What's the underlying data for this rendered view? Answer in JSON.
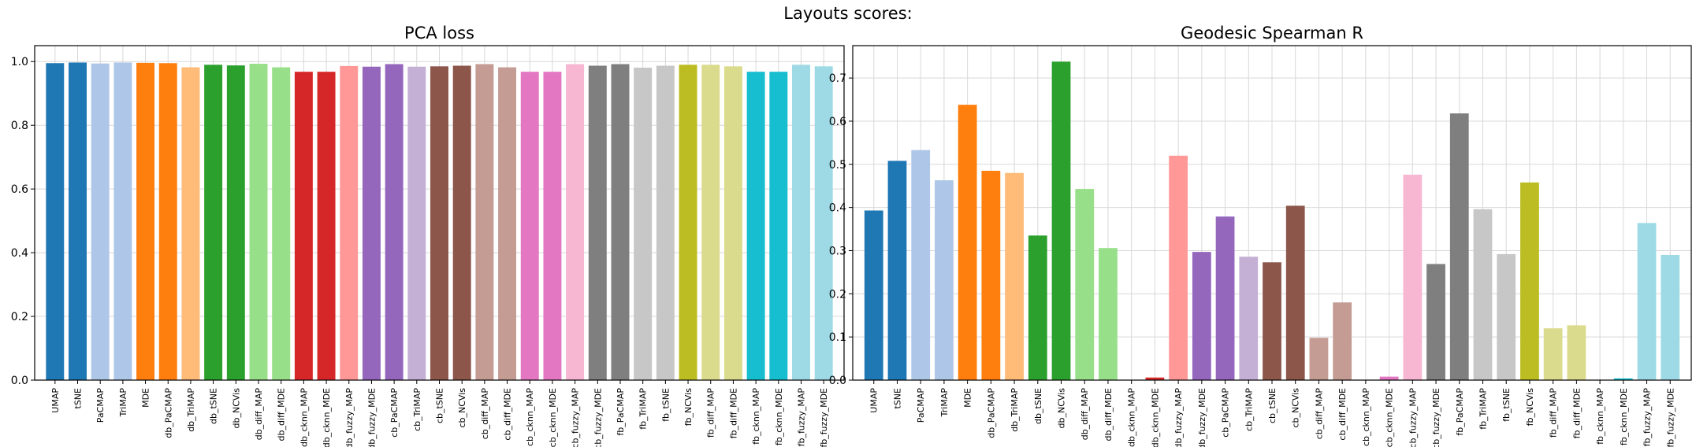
{
  "figure": {
    "suptitle": "Layouts scores:"
  },
  "colors": {
    "UMAP": "#1f77b4",
    "tSNE": "#1f77b4",
    "PaCMAP": "#aec7e8",
    "TriMAP": "#aec7e8",
    "MDE": "#ff7f0e",
    "db_PaCMAP": "#ff7f0e",
    "db_TriMAP": "#ffbb78",
    "db_tSNE": "#2ca02c",
    "db_NCVis": "#2ca02c",
    "db_diff_MAP": "#98df8a",
    "db_diff_MDE": "#98df8a",
    "db_cknn_MAP": "#d62728",
    "db_cknn_MDE": "#d62728",
    "db_fuzzy_MAP": "#ff9896",
    "db_fuzzy_MDE": "#9467bd",
    "cb_PaCMAP": "#9467bd",
    "cb_TriMAP": "#c5b0d5",
    "cb_tSNE": "#8c564b",
    "cb_NCVis": "#8c564b",
    "cb_diff_MAP": "#c49c94",
    "cb_diff_MDE": "#c49c94",
    "cb_cknn_MAP": "#e377c2",
    "cb_cknn_MDE": "#e377c2",
    "cb_fuzzy_MAP": "#f7b6d2",
    "cb_fuzzy_MDE": "#7f7f7f",
    "fb_PaCMAP": "#7f7f7f",
    "fb_TriMAP": "#c7c7c7",
    "fb_tSNE": "#c7c7c7",
    "fb_NCVis": "#bcbd22",
    "fb_diff_MAP": "#dbdb8d",
    "fb_diff_MDE": "#dbdb8d",
    "fb_cknn_MAP": "#17becf",
    "fb_cknn_MDE": "#17becf",
    "fb_fuzzy_MAP": "#9edae5",
    "fb_fuzzy_MDE": "#9edae5"
  },
  "chart_data": [
    {
      "type": "bar",
      "title": "PCA loss",
      "xlabel": "",
      "ylabel": "",
      "ylim": [
        0,
        1.05
      ],
      "yticks": [
        "0.0",
        "0.2",
        "0.4",
        "0.6",
        "0.8",
        "1.0"
      ],
      "grid": true,
      "categories": [
        "UMAP",
        "tSNE",
        "PaCMAP",
        "TriMAP",
        "MDE",
        "db_PaCMAP",
        "db_TriMAP",
        "db_tSNE",
        "db_NCVis",
        "db_diff_MAP",
        "db_diff_MDE",
        "db_cknn_MAP",
        "db_cknn_MDE",
        "db_fuzzy_MAP",
        "db_fuzzy_MDE",
        "cb_PaCMAP",
        "cb_TriMAP",
        "cb_tSNE",
        "cb_NCVis",
        "cb_diff_MAP",
        "cb_diff_MDE",
        "cb_cknn_MAP",
        "cb_cknn_MDE",
        "cb_fuzzy_MAP",
        "cb_fuzzy_MDE",
        "fb_PaCMAP",
        "fb_TriMAP",
        "fb_tSNE",
        "fb_NCVis",
        "fb_diff_MAP",
        "fb_diff_MDE",
        "fb_cknn_MAP",
        "fb_cknn_MDE",
        "fb_fuzzy_MAP",
        "fb_fuzzy_MDE"
      ],
      "values": [
        0.995,
        0.997,
        0.994,
        0.997,
        0.996,
        0.995,
        0.982,
        0.99,
        0.988,
        0.993,
        0.982,
        0.968,
        0.968,
        0.986,
        0.984,
        0.992,
        0.984,
        0.985,
        0.987,
        0.992,
        0.982,
        0.968,
        0.968,
        0.992,
        0.987,
        0.992,
        0.981,
        0.987,
        0.99,
        0.99,
        0.985,
        0.968,
        0.968,
        0.99,
        0.985
      ]
    },
    {
      "type": "bar",
      "title": "Geodesic Spearman R",
      "xlabel": "",
      "ylabel": "",
      "ylim": [
        0,
        0.775
      ],
      "yticks": [
        "0.0",
        "0.1",
        "0.2",
        "0.3",
        "0.4",
        "0.5",
        "0.6",
        "0.7"
      ],
      "grid": true,
      "categories": [
        "UMAP",
        "tSNE",
        "PaCMAP",
        "TriMAP",
        "MDE",
        "db_PaCMAP",
        "db_TriMAP",
        "db_tSNE",
        "db_NCVis",
        "db_diff_MAP",
        "db_diff_MDE",
        "db_cknn_MAP",
        "db_cknn_MDE",
        "db_fuzzy_MAP",
        "db_fuzzy_MDE",
        "cb_PaCMAP",
        "cb_TriMAP",
        "cb_tSNE",
        "cb_NCVis",
        "cb_diff_MAP",
        "cb_diff_MDE",
        "cb_cknn_MAP",
        "cb_cknn_MDE",
        "cb_fuzzy_MAP",
        "cb_fuzzy_MDE",
        "fb_PaCMAP",
        "fb_TriMAP",
        "fb_tSNE",
        "fb_NCVis",
        "fb_diff_MAP",
        "fb_diff_MDE",
        "fb_cknn_MAP",
        "fb_cknn_MDE",
        "fb_fuzzy_MAP",
        "fb_fuzzy_MDE"
      ],
      "values": [
        0.393,
        0.508,
        0.533,
        0.463,
        0.638,
        0.485,
        0.48,
        0.335,
        0.738,
        0.443,
        0.306,
        0.0,
        0.006,
        0.52,
        0.297,
        0.379,
        0.286,
        0.273,
        0.404,
        0.098,
        0.18,
        0.0,
        0.008,
        0.476,
        0.269,
        0.618,
        0.396,
        0.292,
        0.458,
        0.12,
        0.127,
        0.0,
        0.004,
        0.364,
        0.29
      ]
    }
  ]
}
